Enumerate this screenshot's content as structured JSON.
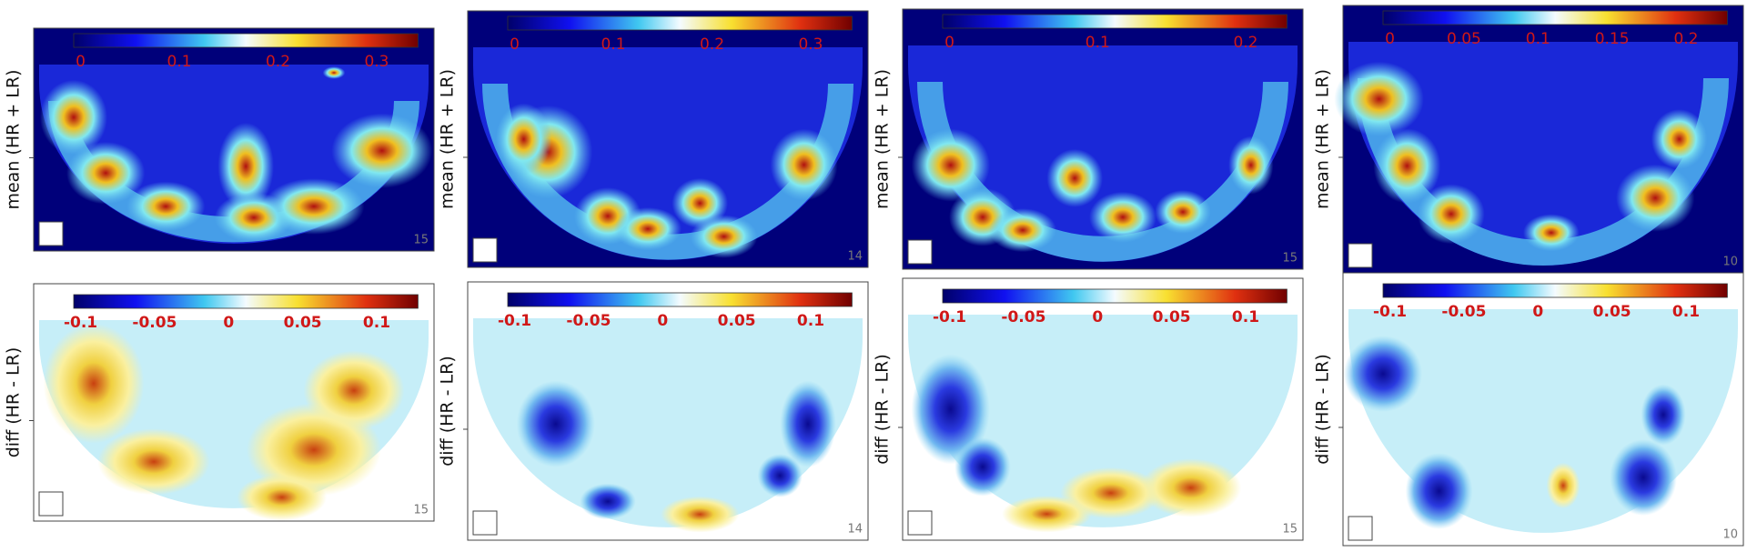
{
  "panels": [
    {
      "mean_label": "mean (HR + LR)",
      "mean_ticks": [
        0,
        0.1,
        0.2,
        0.3
      ],
      "mean_count": 15,
      "diff_label": "diff (HR - LR)",
      "diff_ticks": [
        -0.1,
        -0.05,
        0,
        0.05,
        0.1
      ],
      "diff_count": 15
    },
    {
      "mean_label": "mean (HR + LR)",
      "mean_ticks": [
        0,
        0.1,
        0.2,
        0.3
      ],
      "mean_count": 14,
      "diff_label": "diff (HR - LR)",
      "diff_ticks": [
        -0.1,
        -0.05,
        0,
        0.05,
        0.1
      ],
      "diff_count": 14
    },
    {
      "mean_label": "mean (HR + LR)",
      "mean_ticks": [
        0,
        0.1,
        0.2
      ],
      "mean_count": 15,
      "diff_label": "diff (HR - LR)",
      "diff_ticks": [
        -0.1,
        -0.05,
        0,
        0.05,
        0.1
      ],
      "diff_count": 15
    },
    {
      "mean_label": "mean (HR + LR)",
      "mean_ticks": [
        0,
        0.05,
        0.1,
        0.15,
        0.2
      ],
      "mean_count": 10,
      "diff_label": "diff (HR - LR)",
      "diff_ticks": [
        -0.1,
        -0.05,
        0,
        0.05,
        0.1
      ],
      "diff_count": 10
    }
  ]
}
